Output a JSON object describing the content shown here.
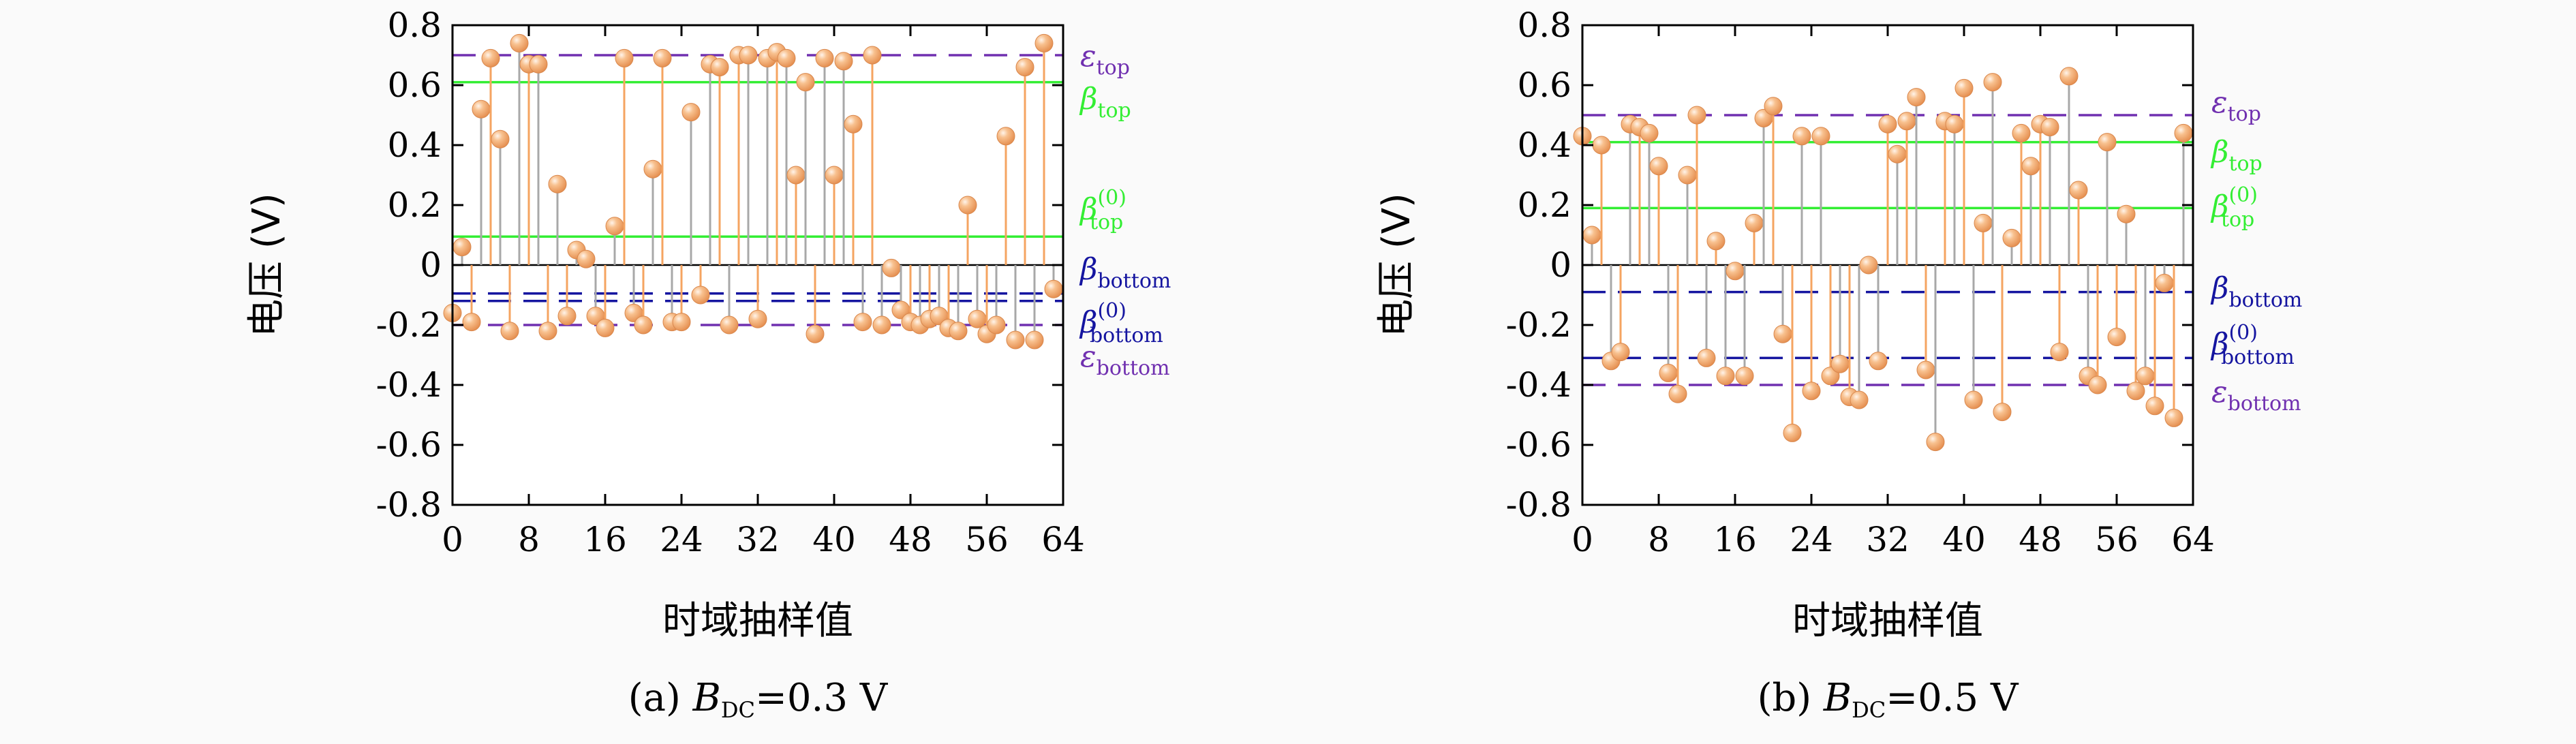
{
  "colors": {
    "epsilon": "#7030b0",
    "beta_top": "#33ee33",
    "beta_bottom": "#1515a0",
    "stem_orange": "#f5a461",
    "stem_gray": "#a8a8a8",
    "marker": "#f3a870"
  },
  "chart_data": [
    {
      "type": "stem",
      "caption_prefix": "(a) ",
      "caption_symbol": "B",
      "caption_sub": "DC",
      "caption_value": "=0.3 V",
      "xlabel": "时域抽样值",
      "ylabel": "电压 (V)",
      "xlim": [
        0,
        64
      ],
      "ylim": [
        -0.8,
        0.8
      ],
      "xticks": [
        "0",
        "8",
        "16",
        "24",
        "32",
        "40",
        "48",
        "56",
        "64"
      ],
      "yticks": [
        "0.8",
        "0.6",
        "0.4",
        "0.2",
        "0",
        "-0.2",
        "-0.4",
        "-0.6",
        "-0.8"
      ],
      "reference_lines": [
        {
          "sym": "ε",
          "sub": "top",
          "sup": "",
          "value": 0.7,
          "style": "dashed",
          "color": "epsilon"
        },
        {
          "sym": "β",
          "sub": "top",
          "sup": "",
          "value": 0.61,
          "style": "solid",
          "color": "beta_top"
        },
        {
          "sym": "β",
          "sub": "top",
          "sup": "(0)",
          "value": 0.095,
          "style": "solid",
          "color": "beta_top"
        },
        {
          "sym": "β",
          "sub": "bottom",
          "sup": "",
          "value": -0.095,
          "style": "dashed",
          "color": "beta_bottom"
        },
        {
          "sym": "β",
          "sub": "bottom",
          "sup": "(0)",
          "value": -0.12,
          "style": "dashed",
          "color": "beta_bottom"
        },
        {
          "sym": "ε",
          "sub": "bottom",
          "sup": "",
          "value": -0.2,
          "style": "dashed",
          "color": "epsilon"
        }
      ],
      "x": [
        0,
        1,
        2,
        3,
        4,
        5,
        6,
        7,
        8,
        9,
        10,
        11,
        12,
        13,
        14,
        15,
        16,
        17,
        18,
        19,
        20,
        21,
        22,
        23,
        24,
        25,
        26,
        27,
        28,
        29,
        30,
        31,
        32,
        33,
        34,
        35,
        36,
        37,
        38,
        39,
        40,
        41,
        42,
        43,
        44,
        45,
        46,
        47,
        48,
        49,
        50,
        51,
        52,
        53,
        54,
        55,
        56,
        57,
        58,
        59,
        60,
        61,
        62,
        63
      ],
      "values": [
        -0.16,
        0.06,
        -0.19,
        0.52,
        0.69,
        0.42,
        -0.22,
        0.74,
        0.67,
        0.67,
        -0.22,
        0.27,
        -0.17,
        0.05,
        0.02,
        -0.17,
        -0.21,
        0.13,
        0.69,
        -0.16,
        -0.2,
        0.32,
        0.69,
        -0.19,
        -0.19,
        0.51,
        -0.1,
        0.67,
        0.66,
        -0.2,
        0.7,
        0.7,
        -0.18,
        0.69,
        0.71,
        0.69,
        0.3,
        0.61,
        -0.23,
        0.69,
        0.3,
        0.68,
        0.47,
        -0.19,
        0.7,
        -0.2,
        -0.01,
        -0.15,
        -0.19,
        -0.2,
        -0.18,
        -0.17,
        -0.21,
        -0.22,
        0.2,
        -0.18,
        -0.23,
        -0.2,
        0.43,
        -0.25,
        0.66,
        -0.25,
        0.74,
        -0.08
      ]
    },
    {
      "type": "stem",
      "caption_prefix": "(b) ",
      "caption_symbol": "B",
      "caption_sub": "DC",
      "caption_value": "=0.5 V",
      "xlabel": "时域抽样值",
      "ylabel": "电压 (V)",
      "xlim": [
        0,
        64
      ],
      "ylim": [
        -0.8,
        0.8
      ],
      "xticks": [
        "0",
        "8",
        "16",
        "24",
        "32",
        "40",
        "48",
        "56",
        "64"
      ],
      "yticks": [
        "0.8",
        "0.6",
        "0.4",
        "0.2",
        "0",
        "-0.2",
        "-0.4",
        "-0.6",
        "-0.8"
      ],
      "reference_lines": [
        {
          "sym": "ε",
          "sub": "top",
          "sup": "",
          "value": 0.5,
          "style": "dashed",
          "color": "epsilon"
        },
        {
          "sym": "β",
          "sub": "top",
          "sup": "",
          "value": 0.41,
          "style": "solid",
          "color": "beta_top"
        },
        {
          "sym": "β",
          "sub": "top",
          "sup": "(0)",
          "value": 0.19,
          "style": "solid",
          "color": "beta_top"
        },
        {
          "sym": "β",
          "sub": "bottom",
          "sup": "",
          "value": -0.09,
          "style": "dashed",
          "color": "beta_bottom"
        },
        {
          "sym": "β",
          "sub": "bottom",
          "sup": "(0)",
          "value": -0.31,
          "style": "dashed",
          "color": "beta_bottom"
        },
        {
          "sym": "ε",
          "sub": "bottom",
          "sup": "",
          "value": -0.4,
          "style": "dashed",
          "color": "epsilon"
        }
      ],
      "x": [
        0,
        1,
        2,
        3,
        4,
        5,
        6,
        7,
        8,
        9,
        10,
        11,
        12,
        13,
        14,
        15,
        16,
        17,
        18,
        19,
        20,
        21,
        22,
        23,
        24,
        25,
        26,
        27,
        28,
        29,
        30,
        31,
        32,
        33,
        34,
        35,
        36,
        37,
        38,
        39,
        40,
        41,
        42,
        43,
        44,
        45,
        46,
        47,
        48,
        49,
        50,
        51,
        52,
        53,
        54,
        55,
        56,
        57,
        58,
        59,
        60,
        61,
        62,
        63
      ],
      "values": [
        0.43,
        0.1,
        0.4,
        -0.32,
        -0.29,
        0.47,
        0.46,
        0.44,
        0.33,
        -0.36,
        -0.43,
        0.3,
        0.5,
        -0.31,
        0.08,
        -0.37,
        -0.02,
        -0.37,
        0.14,
        0.49,
        0.53,
        -0.23,
        -0.56,
        0.43,
        -0.42,
        0.43,
        -0.37,
        -0.33,
        -0.44,
        -0.45,
        0.0,
        -0.32,
        0.47,
        0.37,
        0.48,
        0.56,
        -0.35,
        -0.59,
        0.48,
        0.47,
        0.59,
        -0.45,
        0.14,
        0.61,
        -0.49,
        0.09,
        0.44,
        0.33,
        0.47,
        0.46,
        -0.29,
        0.63,
        0.25,
        -0.37,
        -0.4,
        0.41,
        -0.24,
        0.17,
        -0.42,
        -0.37,
        -0.47,
        -0.06,
        -0.51,
        0.44
      ]
    }
  ]
}
